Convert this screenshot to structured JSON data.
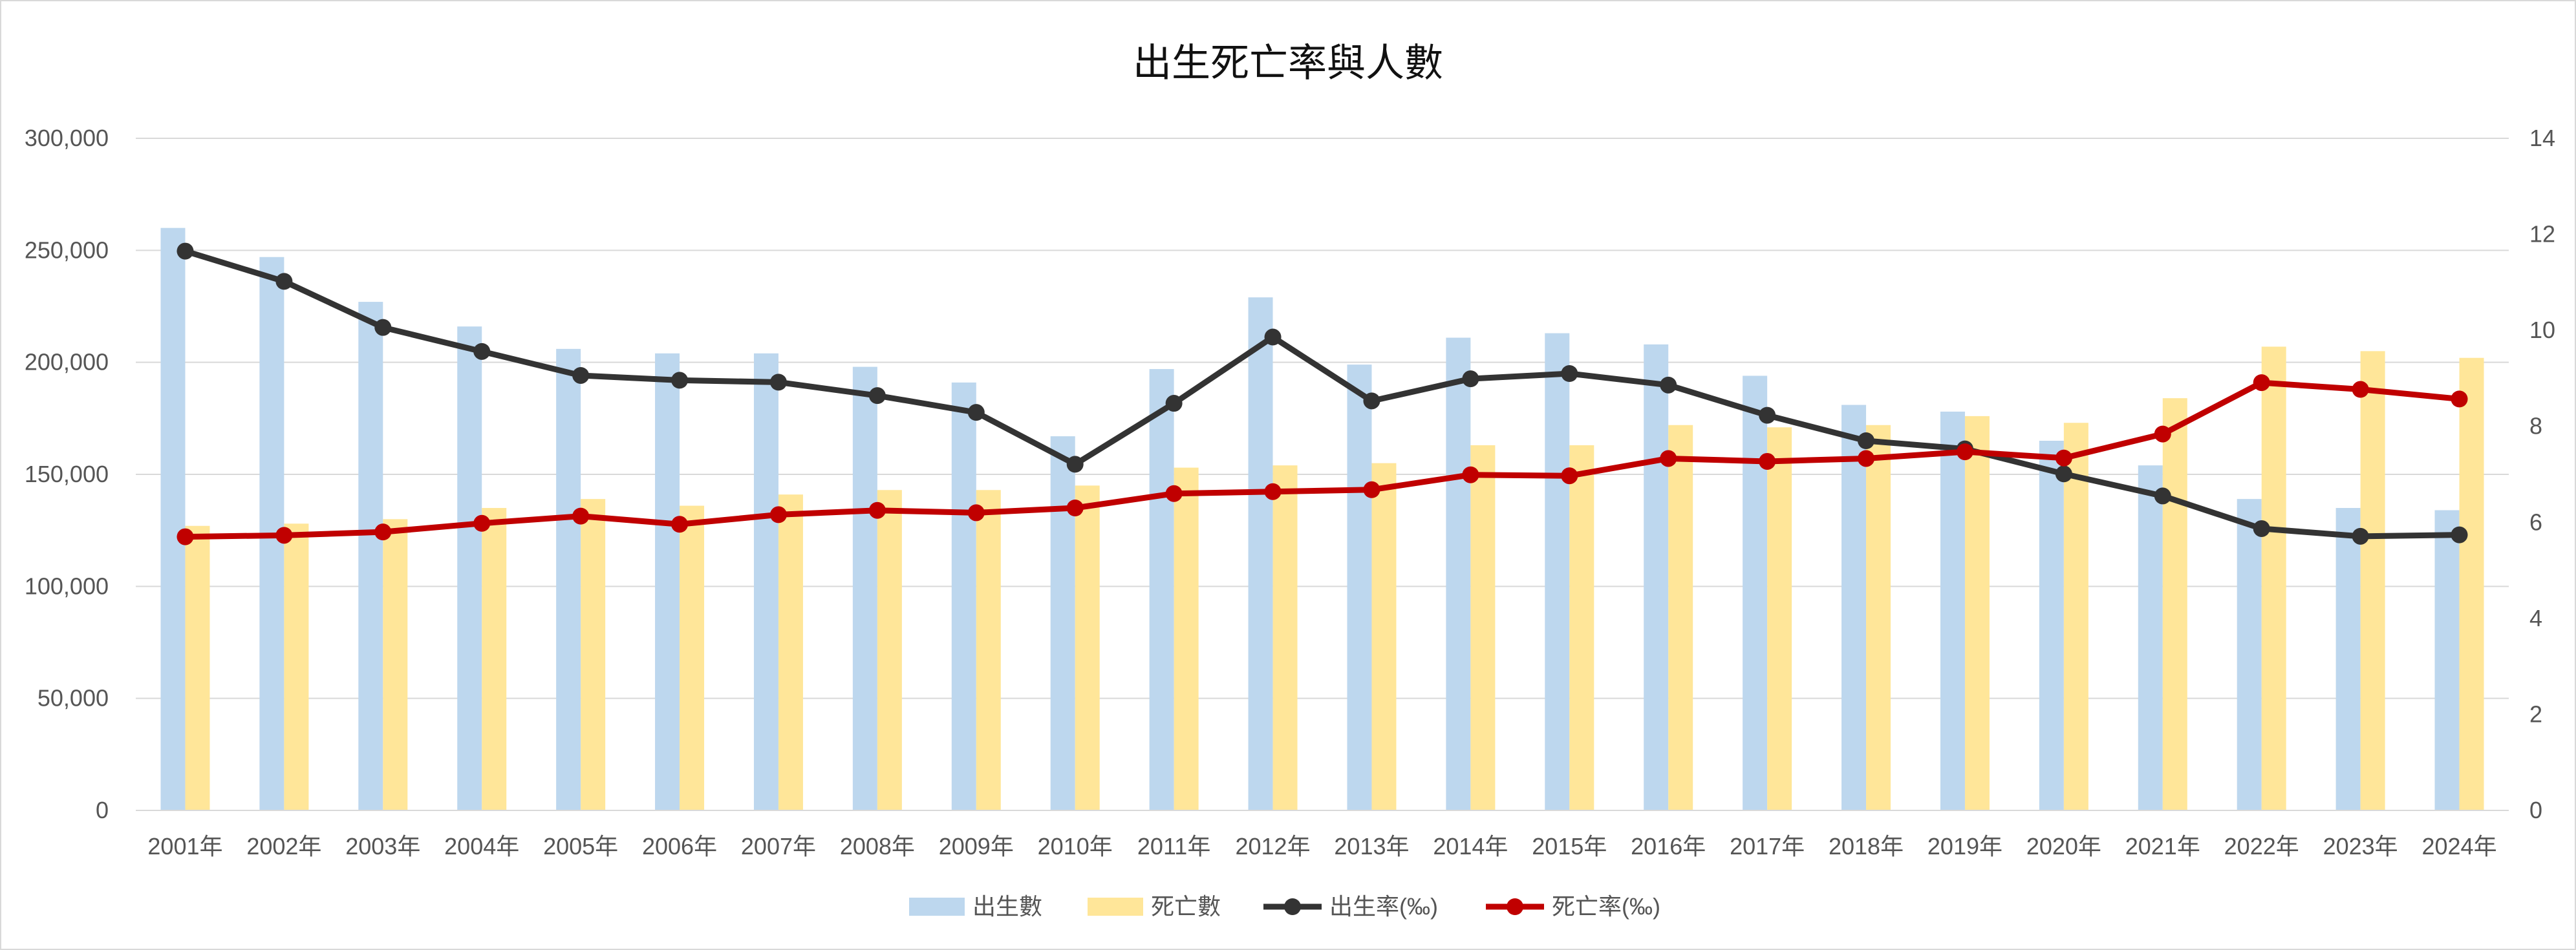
{
  "chart_data": {
    "type": "bar",
    "title": "出生死亡率與人數",
    "categories": [
      "2001年",
      "2002年",
      "2003年",
      "2004年",
      "2005年",
      "2006年",
      "2007年",
      "2008年",
      "2009年",
      "2010年",
      "2011年",
      "2012年",
      "2013年",
      "2014年",
      "2015年",
      "2016年",
      "2017年",
      "2018年",
      "2019年",
      "2020年",
      "2021年",
      "2022年",
      "2023年",
      "2024年"
    ],
    "series": [
      {
        "name": "出生數",
        "type": "bar",
        "axis": "left",
        "color": "#bdd7ee",
        "values": [
          260000,
          247000,
          227000,
          216000,
          206000,
          204000,
          204000,
          198000,
          191000,
          167000,
          197000,
          229000,
          199000,
          211000,
          213000,
          208000,
          194000,
          181000,
          178000,
          165000,
          154000,
          139000,
          135000,
          134000
        ]
      },
      {
        "name": "死亡數",
        "type": "bar",
        "axis": "left",
        "color": "#ffe699",
        "values": [
          127000,
          128000,
          130000,
          135000,
          139000,
          136000,
          141000,
          143000,
          143000,
          145000,
          153000,
          154000,
          155000,
          163000,
          163000,
          172000,
          171000,
          172000,
          176000,
          173000,
          184000,
          207000,
          205000,
          202000
        ]
      },
      {
        "name": "出生率(‰)",
        "type": "line",
        "axis": "right",
        "color": "#333333",
        "values": [
          11.65,
          11.02,
          10.06,
          9.56,
          9.06,
          8.96,
          8.92,
          8.64,
          8.29,
          7.21,
          8.48,
          9.86,
          8.53,
          8.99,
          9.1,
          8.86,
          8.23,
          7.7,
          7.53,
          7.01,
          6.55,
          5.87,
          5.71,
          5.74
        ]
      },
      {
        "name": "死亡率(‰)",
        "type": "line",
        "axis": "right",
        "color": "#c00000",
        "values": [
          5.7,
          5.73,
          5.8,
          5.98,
          6.13,
          5.96,
          6.16,
          6.25,
          6.2,
          6.3,
          6.6,
          6.64,
          6.68,
          6.99,
          6.97,
          7.33,
          7.27,
          7.33,
          7.47,
          7.34,
          7.84,
          8.91,
          8.77,
          8.57
        ]
      }
    ],
    "y_left": {
      "ylim": [
        0,
        300000
      ],
      "ticks": [
        "0",
        "50,000",
        "100,000",
        "150,000",
        "200,000",
        "250,000",
        "300,000"
      ]
    },
    "y_right": {
      "ylim": [
        0,
        14
      ],
      "ticks": [
        "0",
        "2",
        "4",
        "6",
        "8",
        "10",
        "12",
        "14"
      ]
    },
    "grid": true,
    "legend_position": "bottom"
  }
}
